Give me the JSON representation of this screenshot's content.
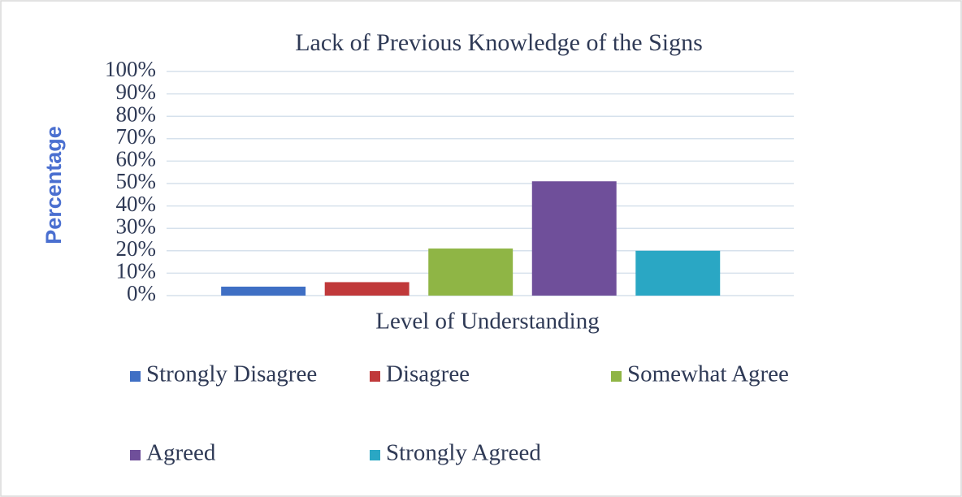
{
  "chart_data": {
    "type": "bar",
    "title": "Lack of Previous Knowledge of the Signs",
    "x_label": "Level of Understanding",
    "y_label": "Percentage",
    "categories": [
      null
    ],
    "series": [
      {
        "name": "Strongly Disagree",
        "color": "#3f6fc4",
        "values": [
          4
        ]
      },
      {
        "name": "Disagree",
        "color": "#c0393a",
        "values": [
          6
        ]
      },
      {
        "name": "Somewhat Agree",
        "color": "#8fb545",
        "values": [
          21
        ]
      },
      {
        "name": "Agreed",
        "color": "#6f4f9a",
        "values": [
          51
        ]
      },
      {
        "name": "Strongly Agreed",
        "color": "#2aa7c4",
        "values": [
          20
        ]
      }
    ],
    "ylim": [
      0,
      100
    ],
    "yticks": [
      {
        "value": 0,
        "label": "0%"
      },
      {
        "value": 10,
        "label": "10%"
      },
      {
        "value": 20,
        "label": "20%"
      },
      {
        "value": 30,
        "label": "30%"
      },
      {
        "value": 40,
        "label": "40%"
      },
      {
        "value": 50,
        "label": "50%"
      },
      {
        "value": 60,
        "label": "60%"
      },
      {
        "value": 70,
        "label": "70%"
      },
      {
        "value": 80,
        "label": "80%"
      },
      {
        "value": 90,
        "label": "90%"
      },
      {
        "value": 100,
        "label": "100%"
      }
    ],
    "grid": true,
    "legend": "bottom"
  }
}
